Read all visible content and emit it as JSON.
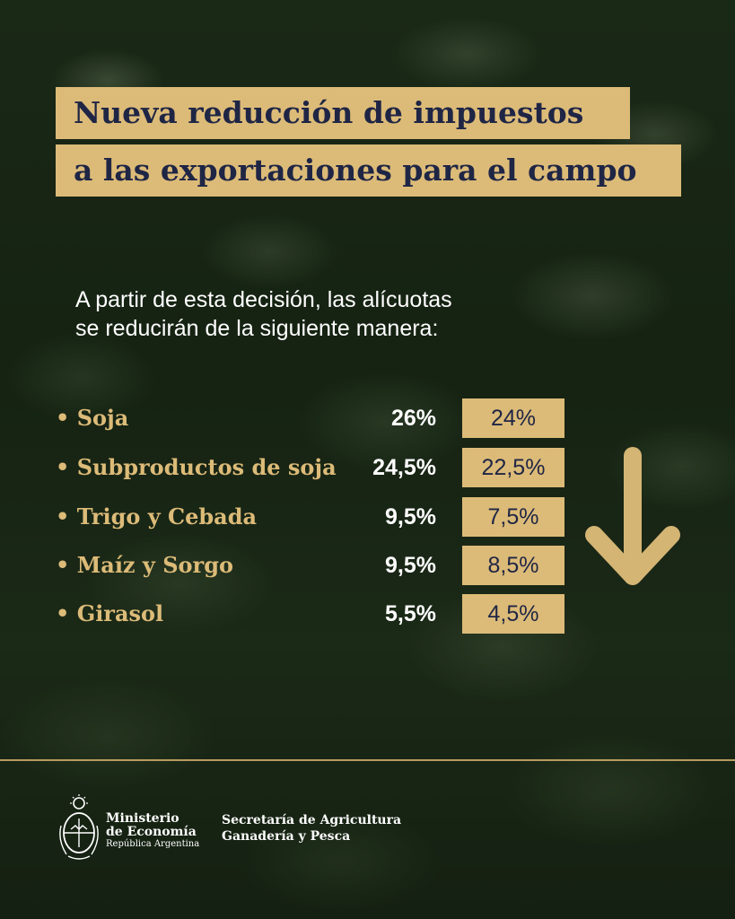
{
  "title": {
    "line1": "Nueva reducción de impuestos",
    "line2": "a las exportaciones para el campo"
  },
  "intro": {
    "line1": "A partir de esta decisión, las alícuotas",
    "line2": "se reducirán de la siguiente manera:"
  },
  "rates": [
    {
      "product": "• Soja",
      "previous": "26%",
      "new": "24%"
    },
    {
      "product": "• Subproductos de soja",
      "previous": "24,5%",
      "new": "22,5%"
    },
    {
      "product": "• Trigo y Cebada",
      "previous": "9,5%",
      "new": "7,5%"
    },
    {
      "product": "• Maíz y Sorgo",
      "previous": "9,5%",
      "new": "8,5%"
    },
    {
      "product": "• Girasol",
      "previous": "5,5%",
      "new": "4,5%"
    }
  ],
  "footer": {
    "ministry_line1": "Ministerio",
    "ministry_line2": "de Economía",
    "ministry_line3": "República Argentina",
    "secretaria_line1": "Secretaría de Agricultura",
    "secretaria_line2": "Ganadería y Pesca"
  },
  "colors": {
    "accent_gold": "#dcbb78",
    "title_navy": "#1f2544",
    "text_white": "#ffffff"
  },
  "icons": {
    "arrow": "arrow-down-icon",
    "emblem": "coat-of-arms-icon"
  }
}
